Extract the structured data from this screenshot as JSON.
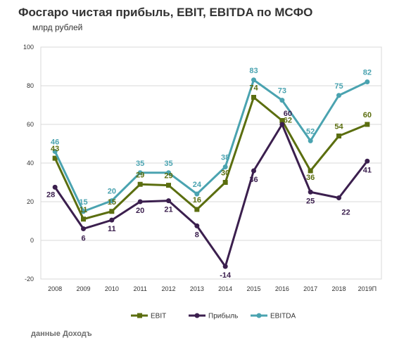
{
  "title": "Фосгаро чистая прибыль, EBIT, EBITDA по МСФО",
  "subtitle": "млрд рублей",
  "source": "данные Доходъ",
  "chart_data": {
    "type": "line",
    "title": "Фосгаро чистая прибыль, EBIT, EBITDA по МСФО",
    "ylabel": "млрд рублей",
    "categories": [
      "2008",
      "2009",
      "2010",
      "2011",
      "2012",
      "2013",
      "2014",
      "2015",
      "2016",
      "2017",
      "2018",
      "2019П"
    ],
    "ylim": [
      -20,
      100
    ],
    "yticks": [
      -20,
      0,
      20,
      40,
      60,
      80,
      100
    ],
    "grid": true,
    "legend": "bottom",
    "series": [
      {
        "name": "EBIT",
        "color": "#5b6e0f",
        "values": [
          42.5,
          11,
          15,
          29,
          28.5,
          16,
          30,
          74,
          62,
          36,
          54,
          60
        ],
        "labels": [
          "43",
          "11",
          "15",
          "29",
          "29",
          "16",
          "30",
          "74",
          "62",
          "36",
          "54",
          "60"
        ]
      },
      {
        "name": "Прибыль",
        "color": "#3b1f4e",
        "values": [
          27.5,
          6,
          10.5,
          20,
          20.5,
          7.5,
          -13.5,
          36,
          60,
          25,
          22,
          41
        ],
        "labels": [
          "28",
          "6",
          "11",
          "20",
          "21",
          "8",
          "-14",
          "36",
          "60",
          "25",
          "22",
          "41"
        ]
      },
      {
        "name": "EBITDA",
        "color": "#4aa3b0",
        "values": [
          46,
          15,
          20.5,
          35,
          35,
          24,
          38,
          83,
          72.5,
          51.5,
          75,
          82
        ],
        "labels": [
          "46",
          "15",
          "20",
          "35",
          "35",
          "24",
          "38",
          "83",
          "73",
          "52",
          "75",
          "82"
        ]
      }
    ]
  }
}
